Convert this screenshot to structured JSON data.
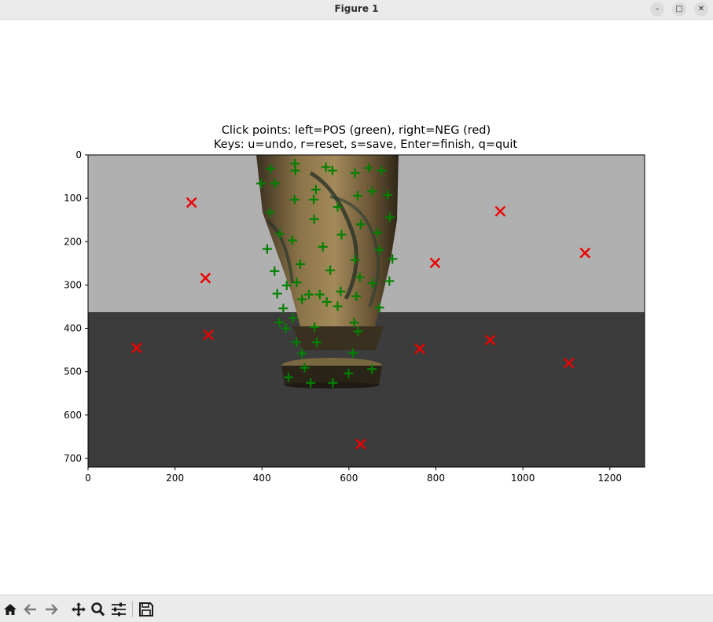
{
  "window": {
    "title": "Figure 1"
  },
  "toolbar": {
    "icons": [
      "home-icon",
      "back-icon",
      "forward-icon",
      "pan-icon",
      "zoom-icon",
      "configure-subplots-icon",
      "save-icon"
    ]
  },
  "chart_data": {
    "type": "scatter",
    "title": "Click points: left=POS (green), right=NEG (red)",
    "subtitle": "Keys: u=undo, r=reset, s=save, Enter=finish, q=quit",
    "xlabel": "",
    "ylabel": "",
    "xlim": [
      0,
      1280
    ],
    "ylim": [
      720,
      0
    ],
    "xticks": [
      0,
      200,
      400,
      600,
      800,
      1000,
      1200
    ],
    "yticks": [
      0,
      100,
      200,
      300,
      400,
      500,
      600,
      700
    ],
    "grid": false,
    "y_axis_inverted": true,
    "background_image": "vase on table photo",
    "colors": {
      "wall": "#b0b0b0",
      "table": "#3c3c3c",
      "positive": "#008000",
      "negative": "#ee0000"
    },
    "series": [
      {
        "marker": "plus",
        "color": "#008000",
        "points": [
          [
            398,
            66
          ],
          [
            420,
            32
          ],
          [
            430,
            66
          ],
          [
            476,
            20
          ],
          [
            477,
            36
          ],
          [
            547,
            28
          ],
          [
            562,
            36
          ],
          [
            614,
            42
          ],
          [
            645,
            30
          ],
          [
            675,
            36
          ],
          [
            418,
            133
          ],
          [
            475,
            103
          ],
          [
            524,
            80
          ],
          [
            519,
            103
          ],
          [
            653,
            84
          ],
          [
            689,
            92
          ],
          [
            620,
            94
          ],
          [
            574,
            120
          ],
          [
            520,
            148
          ],
          [
            441,
            182
          ],
          [
            470,
            197
          ],
          [
            583,
            184
          ],
          [
            627,
            160
          ],
          [
            694,
            144
          ],
          [
            666,
            179
          ],
          [
            412,
            217
          ],
          [
            540,
            212
          ],
          [
            670,
            219
          ],
          [
            429,
            268
          ],
          [
            488,
            252
          ],
          [
            557,
            266
          ],
          [
            614,
            242
          ],
          [
            700,
            240
          ],
          [
            625,
            282
          ],
          [
            435,
            320
          ],
          [
            457,
            301
          ],
          [
            480,
            294
          ],
          [
            508,
            322
          ],
          [
            533,
            322
          ],
          [
            549,
            339
          ],
          [
            574,
            349
          ],
          [
            581,
            315
          ],
          [
            617,
            326
          ],
          [
            654,
            296
          ],
          [
            693,
            291
          ],
          [
            449,
            354
          ],
          [
            440,
            386
          ],
          [
            455,
            400
          ],
          [
            471,
            376
          ],
          [
            492,
            333
          ],
          [
            521,
            397
          ],
          [
            526,
            432
          ],
          [
            479,
            432
          ],
          [
            492,
            458
          ],
          [
            612,
            387
          ],
          [
            621,
            407
          ],
          [
            609,
            457
          ],
          [
            670,
            352
          ],
          [
            461,
            513
          ],
          [
            498,
            491
          ],
          [
            512,
            526
          ],
          [
            563,
            526
          ],
          [
            599,
            504
          ],
          [
            653,
            494
          ]
        ]
      },
      {
        "marker": "x",
        "color": "#ee0000",
        "points": [
          [
            238,
            110
          ],
          [
            270,
            284
          ],
          [
            112,
            445
          ],
          [
            277,
            415
          ],
          [
            627,
            667
          ],
          [
            763,
            447
          ],
          [
            798,
            249
          ],
          [
            948,
            130
          ],
          [
            925,
            427
          ],
          [
            1106,
            480
          ],
          [
            1143,
            226
          ]
        ]
      }
    ]
  }
}
